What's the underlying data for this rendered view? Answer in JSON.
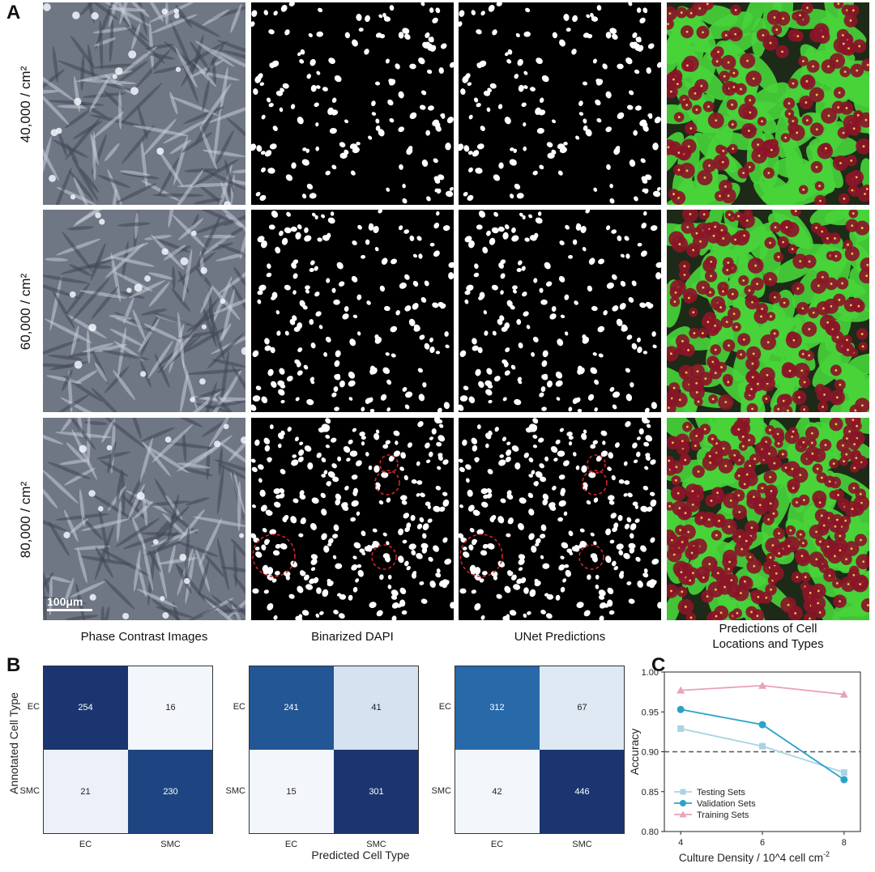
{
  "panel_letters": {
    "a": "A",
    "b": "B",
    "c": "C"
  },
  "panel_a": {
    "row_labels": [
      "40,000 / cm²",
      "60,000 / cm²",
      "80,000 / cm²"
    ],
    "column_labels": [
      "Phase Contrast Images",
      "Binarized DAPI",
      "UNet Predictions",
      "Predictions of Cell\nLocations and Types"
    ],
    "scale_bar": "100μm"
  },
  "panel_b": {
    "ylabel": "Annotated Cell Type",
    "xlabel": "Predicted Cell Type",
    "tick_labels": [
      "EC",
      "SMC"
    ],
    "matrices": [
      {
        "values": [
          [
            254,
            16
          ],
          [
            21,
            230
          ]
        ]
      },
      {
        "values": [
          [
            241,
            41
          ],
          [
            15,
            301
          ]
        ]
      },
      {
        "values": [
          [
            312,
            67
          ],
          [
            42,
            446
          ]
        ]
      }
    ]
  },
  "chart_data": {
    "type": "line",
    "x": [
      4,
      6,
      8
    ],
    "xticks": [
      "4",
      "6",
      "8"
    ],
    "yticks": [
      "0.80",
      "0.85",
      "0.90",
      "0.95",
      "1.00"
    ],
    "ylim": [
      0.8,
      1.0
    ],
    "xlim": [
      3.6,
      8.4
    ],
    "xlabel": "Culture Density / 10^4 cell cm",
    "xlabel_sup": "-2",
    "ylabel": "Accuracy",
    "reference_line": 0.9,
    "legend_position": "lower-left",
    "series": [
      {
        "name": "Testing Sets",
        "values": [
          0.929,
          0.907,
          0.874
        ],
        "color": "#a9d4e3",
        "marker": "square"
      },
      {
        "name": "Validation Sets",
        "values": [
          0.953,
          0.934,
          0.865
        ],
        "color": "#2ba3c9",
        "marker": "circle"
      },
      {
        "name": "Training Sets",
        "values": [
          0.977,
          0.983,
          0.972
        ],
        "color": "#e8a3b5",
        "marker": "triangle"
      }
    ]
  },
  "colors": {
    "cm_dark": "#1a3570",
    "cm_mid": "#2a74b5",
    "cm_light": "#f3f6fb",
    "green": "#48d43a",
    "red_cell": "#8a1628"
  }
}
